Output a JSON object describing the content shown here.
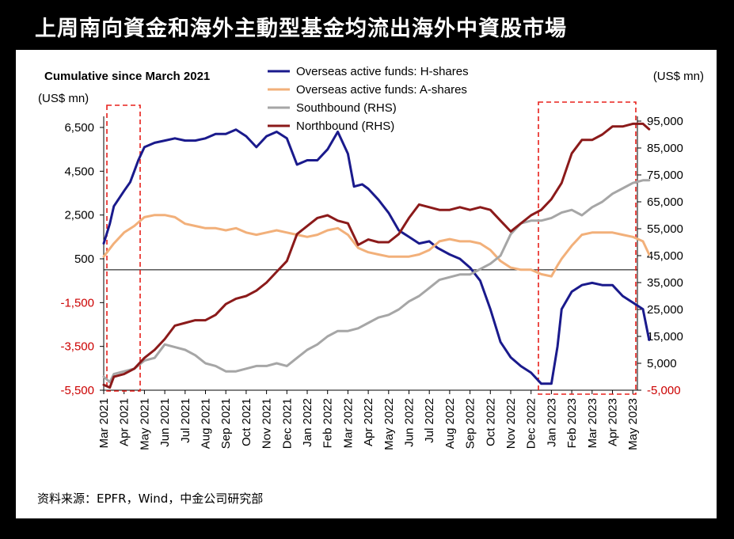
{
  "title": "上周南向資金和海外主動型基金均流出海外中資股市場",
  "source": "资料来源：EPFR，Wind，中金公司研究部",
  "chart_data": {
    "type": "line",
    "subtitle": "Cumulative since March 2021",
    "left_unit": "(US$ mn)",
    "right_unit": "(US$ mn)",
    "left_ticks": [
      6500,
      4500,
      2500,
      500,
      -1500,
      -3500,
      -5500
    ],
    "left_tick_labels": [
      "6,500",
      "4,500",
      "2,500",
      "500",
      "-1,500",
      "-3,500",
      "-5,500"
    ],
    "right_ticks": [
      95000,
      85000,
      75000,
      65000,
      55000,
      45000,
      35000,
      25000,
      15000,
      5000,
      -5000
    ],
    "right_tick_labels": [
      "95,000",
      "85,000",
      "75,000",
      "65,000",
      "55,000",
      "45,000",
      "35,000",
      "25,000",
      "15,000",
      "5,000",
      "-5,000"
    ],
    "ylim_left": [
      -5500,
      6500
    ],
    "ylim_right": [
      -5000,
      95000
    ],
    "x_labels": [
      "Mar 2021",
      "Apr 2021",
      "May 2021",
      "Jun 2021",
      "Jul 2021",
      "Aug 2021",
      "Sep 2021",
      "Oct 2021",
      "Nov 2021",
      "Dec 2021",
      "Jan 2022",
      "Feb 2022",
      "Mar 2022",
      "Apr 2022",
      "May 2022",
      "Jun 2022",
      "Jul 2022",
      "Aug 2022",
      "Sep 2022",
      "Oct 2022",
      "Nov 2022",
      "Dec 2022",
      "Jan 2023",
      "Feb 2023",
      "Mar 2023",
      "Apr 2023",
      "May 2023"
    ],
    "legend": [
      "Overseas active funds: H-shares",
      "Overseas active funds: A-shares",
      "Southbound (RHS)",
      "Northbound (RHS)"
    ],
    "legend_placement": "top-center",
    "highlight_ranges": [
      [
        "Mar 2021",
        "May 2021"
      ],
      [
        "Jan 2023",
        "May 2023"
      ]
    ],
    "series": [
      {
        "name": "Overseas active funds: H-shares",
        "axis": "left",
        "color": "#1a1a8c",
        "points": [
          [
            0,
            1200
          ],
          [
            0.3,
            2100
          ],
          [
            0.5,
            2900
          ],
          [
            1,
            3600
          ],
          [
            1.3,
            4000
          ],
          [
            1.5,
            4500
          ],
          [
            1.7,
            5000
          ],
          [
            2,
            5600
          ],
          [
            2.5,
            5800
          ],
          [
            3,
            5900
          ],
          [
            3.5,
            6000
          ],
          [
            4,
            5900
          ],
          [
            4.5,
            5900
          ],
          [
            5,
            6000
          ],
          [
            5.5,
            6200
          ],
          [
            6,
            6200
          ],
          [
            6.5,
            6400
          ],
          [
            7,
            6100
          ],
          [
            7.5,
            5600
          ],
          [
            8,
            6100
          ],
          [
            8.5,
            6300
          ],
          [
            9,
            6000
          ],
          [
            9.5,
            4800
          ],
          [
            10,
            5000
          ],
          [
            10.5,
            5000
          ],
          [
            11,
            5500
          ],
          [
            11.5,
            6300
          ],
          [
            12,
            5300
          ],
          [
            12.3,
            3800
          ],
          [
            12.7,
            3900
          ],
          [
            13,
            3700
          ],
          [
            13.5,
            3200
          ],
          [
            14,
            2600
          ],
          [
            14.5,
            1800
          ],
          [
            15,
            1500
          ],
          [
            15.5,
            1200
          ],
          [
            16,
            1300
          ],
          [
            16.4,
            1000
          ],
          [
            17,
            700
          ],
          [
            17.5,
            500
          ],
          [
            18,
            100
          ],
          [
            18.5,
            -500
          ],
          [
            19,
            -1800
          ],
          [
            19.5,
            -3300
          ],
          [
            20,
            -4000
          ],
          [
            20.5,
            -4400
          ],
          [
            21,
            -4700
          ],
          [
            21.5,
            -5200
          ],
          [
            22,
            -5200
          ],
          [
            22.3,
            -3500
          ],
          [
            22.5,
            -1800
          ],
          [
            23,
            -1000
          ],
          [
            23.5,
            -700
          ],
          [
            24,
            -600
          ],
          [
            24.5,
            -700
          ],
          [
            25,
            -700
          ],
          [
            25.5,
            -1200
          ],
          [
            26,
            -1500
          ],
          [
            26.5,
            -1800
          ],
          [
            26.8,
            -3200
          ]
        ]
      },
      {
        "name": "Overseas active funds: A-shares",
        "axis": "left",
        "color": "#f2b07a",
        "points": [
          [
            0,
            600
          ],
          [
            0.5,
            1200
          ],
          [
            1,
            1700
          ],
          [
            1.5,
            2000
          ],
          [
            2,
            2400
          ],
          [
            2.5,
            2500
          ],
          [
            3,
            2500
          ],
          [
            3.5,
            2400
          ],
          [
            4,
            2100
          ],
          [
            4.5,
            2000
          ],
          [
            5,
            1900
          ],
          [
            5.5,
            1900
          ],
          [
            6,
            1800
          ],
          [
            6.5,
            1900
          ],
          [
            7,
            1700
          ],
          [
            7.5,
            1600
          ],
          [
            8,
            1700
          ],
          [
            8.5,
            1800
          ],
          [
            9,
            1700
          ],
          [
            9.5,
            1600
          ],
          [
            10,
            1500
          ],
          [
            10.5,
            1600
          ],
          [
            11,
            1800
          ],
          [
            11.5,
            1900
          ],
          [
            12,
            1600
          ],
          [
            12.5,
            1000
          ],
          [
            13,
            800
          ],
          [
            13.5,
            700
          ],
          [
            14,
            600
          ],
          [
            14.5,
            600
          ],
          [
            15,
            600
          ],
          [
            15.5,
            700
          ],
          [
            16,
            900
          ],
          [
            16.5,
            1300
          ],
          [
            17,
            1400
          ],
          [
            17.5,
            1300
          ],
          [
            18,
            1300
          ],
          [
            18.5,
            1200
          ],
          [
            19,
            900
          ],
          [
            19.5,
            400
          ],
          [
            20,
            100
          ],
          [
            20.5,
            0
          ],
          [
            21,
            0
          ],
          [
            21.5,
            -200
          ],
          [
            22,
            -300
          ],
          [
            22.3,
            200
          ],
          [
            22.5,
            500
          ],
          [
            23,
            1100
          ],
          [
            23.5,
            1600
          ],
          [
            24,
            1700
          ],
          [
            24.5,
            1700
          ],
          [
            25,
            1700
          ],
          [
            25.5,
            1600
          ],
          [
            26,
            1500
          ],
          [
            26.5,
            1300
          ],
          [
            26.8,
            700
          ]
        ]
      },
      {
        "name": "Southbound (RHS)",
        "axis": "right",
        "color": "#a6a6a6",
        "points": [
          [
            0,
            0
          ],
          [
            0.3,
            -2000
          ],
          [
            0.5,
            1000
          ],
          [
            1,
            2000
          ],
          [
            1.5,
            3000
          ],
          [
            2,
            6000
          ],
          [
            2.5,
            7000
          ],
          [
            3,
            12000
          ],
          [
            3.5,
            11000
          ],
          [
            4,
            10000
          ],
          [
            4.5,
            8000
          ],
          [
            5,
            5000
          ],
          [
            5.5,
            4000
          ],
          [
            6,
            2000
          ],
          [
            6.5,
            2000
          ],
          [
            7,
            3000
          ],
          [
            7.5,
            4000
          ],
          [
            8,
            4000
          ],
          [
            8.5,
            5000
          ],
          [
            9,
            4000
          ],
          [
            9.5,
            7000
          ],
          [
            10,
            10000
          ],
          [
            10.5,
            12000
          ],
          [
            11,
            15000
          ],
          [
            11.5,
            17000
          ],
          [
            12,
            17000
          ],
          [
            12.5,
            18000
          ],
          [
            13,
            20000
          ],
          [
            13.5,
            22000
          ],
          [
            14,
            23000
          ],
          [
            14.5,
            25000
          ],
          [
            15,
            28000
          ],
          [
            15.5,
            30000
          ],
          [
            16,
            33000
          ],
          [
            16.5,
            36000
          ],
          [
            17,
            37000
          ],
          [
            17.5,
            38000
          ],
          [
            18,
            38000
          ],
          [
            18.5,
            40000
          ],
          [
            19,
            42000
          ],
          [
            19.5,
            45000
          ],
          [
            20,
            53000
          ],
          [
            20.5,
            57000
          ],
          [
            21,
            58000
          ],
          [
            21.5,
            58000
          ],
          [
            22,
            59000
          ],
          [
            22.5,
            61000
          ],
          [
            23,
            62000
          ],
          [
            23.5,
            60000
          ],
          [
            24,
            63000
          ],
          [
            24.5,
            65000
          ],
          [
            25,
            68000
          ],
          [
            25.5,
            70000
          ],
          [
            26,
            72000
          ],
          [
            26.5,
            73000
          ],
          [
            26.8,
            73000
          ]
        ]
      },
      {
        "name": "Northbound (RHS)",
        "axis": "right",
        "color": "#8b1a1a",
        "points": [
          [
            0,
            -3000
          ],
          [
            0.3,
            -4000
          ],
          [
            0.5,
            0
          ],
          [
            1,
            1000
          ],
          [
            1.5,
            3000
          ],
          [
            2,
            7000
          ],
          [
            2.5,
            10000
          ],
          [
            3,
            14000
          ],
          [
            3.5,
            19000
          ],
          [
            4,
            20000
          ],
          [
            4.5,
            21000
          ],
          [
            5,
            21000
          ],
          [
            5.5,
            23000
          ],
          [
            6,
            27000
          ],
          [
            6.5,
            29000
          ],
          [
            7,
            30000
          ],
          [
            7.5,
            32000
          ],
          [
            8,
            35000
          ],
          [
            8.5,
            39000
          ],
          [
            9,
            43000
          ],
          [
            9.5,
            53000
          ],
          [
            10,
            56000
          ],
          [
            10.5,
            59000
          ],
          [
            11,
            60000
          ],
          [
            11.5,
            58000
          ],
          [
            12,
            57000
          ],
          [
            12.5,
            49000
          ],
          [
            13,
            51000
          ],
          [
            13.5,
            50000
          ],
          [
            14,
            50000
          ],
          [
            14.5,
            53000
          ],
          [
            15,
            59000
          ],
          [
            15.5,
            64000
          ],
          [
            16,
            63000
          ],
          [
            16.5,
            62000
          ],
          [
            17,
            62000
          ],
          [
            17.5,
            63000
          ],
          [
            18,
            62000
          ],
          [
            18.5,
            63000
          ],
          [
            19,
            62000
          ],
          [
            19.5,
            58000
          ],
          [
            20,
            54000
          ],
          [
            20.5,
            57000
          ],
          [
            21,
            60000
          ],
          [
            21.5,
            62000
          ],
          [
            22,
            66000
          ],
          [
            22.5,
            72000
          ],
          [
            23,
            83000
          ],
          [
            23.5,
            88000
          ],
          [
            24,
            88000
          ],
          [
            24.5,
            90000
          ],
          [
            25,
            93000
          ],
          [
            25.5,
            93000
          ],
          [
            26,
            94000
          ],
          [
            26.5,
            94000
          ],
          [
            26.8,
            92000
          ]
        ]
      }
    ]
  }
}
